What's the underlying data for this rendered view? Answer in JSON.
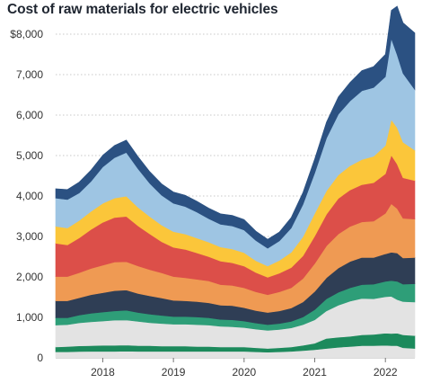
{
  "chart_data": {
    "type": "area",
    "stacked": true,
    "title": "Cost of raw materials for electric vehicles",
    "x_start": "2017-05",
    "x_end": "2022-06",
    "x": [
      "2017-05",
      "2017-07",
      "2017-09",
      "2017-11",
      "2018-01",
      "2018-03",
      "2018-05",
      "2018-07",
      "2018-09",
      "2018-11",
      "2019-01",
      "2019-03",
      "2019-05",
      "2019-07",
      "2019-09",
      "2019-11",
      "2020-01",
      "2020-03",
      "2020-05",
      "2020-07",
      "2020-09",
      "2020-11",
      "2021-01",
      "2021-03",
      "2021-05",
      "2021-07",
      "2021-09",
      "2021-11",
      "2022-01",
      "2022-02",
      "2022-03",
      "2022-04",
      "2022-06"
    ],
    "ylim": [
      0,
      8400
    ],
    "yticks": [
      0,
      1000,
      2000,
      3000,
      4000,
      5000,
      6000,
      7000,
      8000
    ],
    "ytick_labels": [
      "0",
      "1,000",
      "2,000",
      "3,000",
      "4,000",
      "5,000",
      "6,000",
      "7,000",
      "$8,000"
    ],
    "xticks": [
      "2018-01",
      "2019-01",
      "2020-01",
      "2021-01",
      "2022-01"
    ],
    "xtick_labels": [
      "2018",
      "2019",
      "2020",
      "2021",
      "2022"
    ],
    "grid": "horizontal",
    "series": [
      {
        "color": "#e3e3e3",
        "values": [
          150,
          150,
          155,
          160,
          160,
          160,
          165,
          160,
          160,
          160,
          160,
          160,
          160,
          160,
          160,
          160,
          160,
          150,
          140,
          150,
          160,
          180,
          200,
          230,
          260,
          280,
          300,
          300,
          310,
          300,
          300,
          250,
          230
        ]
      },
      {
        "color": "#1c8a5c",
        "values": [
          120,
          130,
          140,
          140,
          150,
          150,
          150,
          140,
          140,
          130,
          130,
          130,
          120,
          120,
          110,
          110,
          110,
          100,
          90,
          100,
          110,
          130,
          160,
          250,
          250,
          250,
          270,
          280,
          300,
          300,
          310,
          320,
          320
        ]
      },
      {
        "color": "#e3e3e3",
        "values": [
          540,
          540,
          570,
          590,
          600,
          620,
          620,
          600,
          570,
          560,
          540,
          540,
          540,
          530,
          510,
          500,
          480,
          460,
          450,
          450,
          470,
          510,
          580,
          680,
          790,
          870,
          900,
          880,
          900,
          920,
          830,
          820,
          830
        ]
      },
      {
        "color": "#2e9e78",
        "values": [
          180,
          170,
          190,
          210,
          220,
          230,
          240,
          220,
          210,
          200,
          190,
          190,
          190,
          180,
          170,
          170,
          160,
          150,
          140,
          150,
          160,
          190,
          250,
          300,
          320,
          330,
          340,
          360,
          380,
          390,
          450,
          430,
          450
        ]
      },
      {
        "color": "#2f3e55",
        "values": [
          420,
          420,
          430,
          460,
          480,
          500,
          500,
          470,
          450,
          430,
          400,
          390,
          380,
          370,
          350,
          350,
          330,
          310,
          300,
          310,
          330,
          370,
          450,
          520,
          600,
          650,
          670,
          660,
          680,
          700,
          700,
          650,
          650
        ]
      },
      {
        "color": "#ef9a53",
        "values": [
          600,
          600,
          620,
          650,
          680,
          710,
          700,
          680,
          650,
          620,
          590,
          570,
          550,
          540,
          510,
          500,
          490,
          460,
          440,
          470,
          500,
          580,
          690,
          790,
          840,
          870,
          880,
          900,
          1000,
          1200,
          1100,
          980,
          950
        ]
      },
      {
        "color": "#dc4f49",
        "values": [
          820,
          780,
          860,
          960,
          1060,
          1100,
          1120,
          990,
          880,
          770,
          720,
          700,
          650,
          600,
          580,
          560,
          540,
          480,
          430,
          460,
          500,
          560,
          680,
          780,
          880,
          900,
          920,
          950,
          980,
          1200,
          1100,
          1000,
          950
        ]
      },
      {
        "color": "#fbc63a",
        "values": [
          420,
          420,
          430,
          450,
          470,
          480,
          500,
          460,
          430,
          410,
          390,
          380,
          370,
          360,
          350,
          340,
          330,
          290,
          280,
          320,
          380,
          470,
          560,
          580,
          580,
          600,
          620,
          650,
          700,
          880,
          900,
          880,
          750
        ]
      },
      {
        "color": "#9ec5e3",
        "values": [
          700,
          700,
          680,
          740,
          900,
          1000,
          1080,
          950,
          820,
          740,
          700,
          680,
          640,
          580,
          560,
          570,
          560,
          500,
          440,
          480,
          600,
          800,
          1000,
          1300,
          1500,
          1600,
          1700,
          1700,
          1700,
          2000,
          1800,
          1700,
          1500
        ]
      },
      {
        "color": "#2b5182",
        "values": [
          230,
          250,
          270,
          280,
          290,
          300,
          310,
          300,
          290,
          280,
          280,
          280,
          270,
          260,
          260,
          260,
          260,
          230,
          220,
          220,
          260,
          300,
          350,
          400,
          430,
          460,
          500,
          520,
          550,
          700,
          1200,
          1250,
          1400
        ]
      }
    ]
  }
}
